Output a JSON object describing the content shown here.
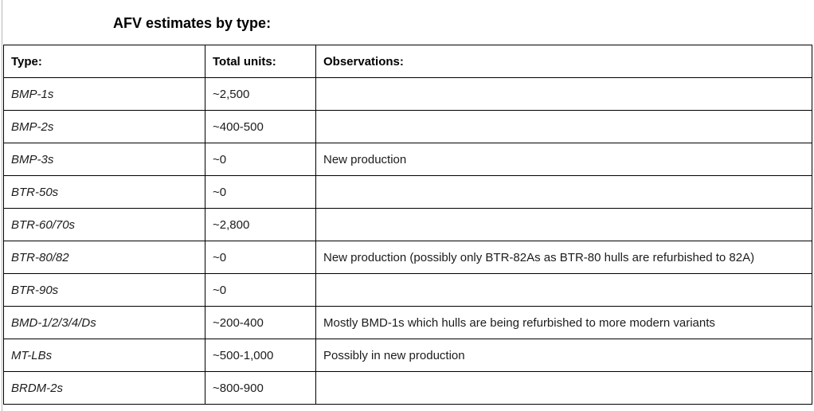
{
  "title": "AFV estimates by type:",
  "colors": {
    "table_border": "#000000",
    "text": "#1c1c1c",
    "page_rule": "#b7b7b7"
  },
  "table": {
    "headers": [
      "Type:",
      "Total units:",
      "Observations:"
    ],
    "rows": [
      {
        "type": "BMP-1s",
        "units": "~2,500",
        "obs": ""
      },
      {
        "type": "BMP-2s",
        "units": "~400-500",
        "obs": ""
      },
      {
        "type": "BMP-3s",
        "units": "~0",
        "obs": "New production"
      },
      {
        "type": "BTR-50s",
        "units": "~0",
        "obs": ""
      },
      {
        "type": "BTR-60/70s",
        "units": "~2,800",
        "obs": ""
      },
      {
        "type": "BTR-80/82",
        "units": "~0",
        "obs": "New production (possibly only BTR-82As as BTR-80 hulls are refurbished to 82A)"
      },
      {
        "type": "BTR-90s",
        "units": "~0",
        "obs": ""
      },
      {
        "type": "BMD-1/2/3/4/Ds",
        "units": "~200-400",
        "obs": "Mostly BMD-1s which hulls are being refurbished to more modern variants"
      },
      {
        "type": "MT-LBs",
        "units": "~500-1,000",
        "obs": "Possibly in new production"
      },
      {
        "type": "BRDM-2s",
        "units": "~800-900",
        "obs": ""
      }
    ]
  }
}
